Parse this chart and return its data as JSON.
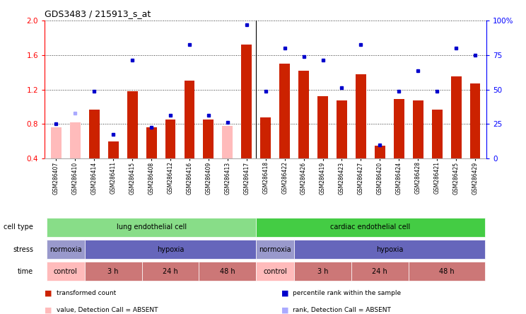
{
  "title": "GDS3483 / 215913_s_at",
  "samples": [
    "GSM286407",
    "GSM286410",
    "GSM286414",
    "GSM286411",
    "GSM286415",
    "GSM286408",
    "GSM286412",
    "GSM286416",
    "GSM286409",
    "GSM286413",
    "GSM286417",
    "GSM286418",
    "GSM286422",
    "GSM286426",
    "GSM286419",
    "GSM286423",
    "GSM286427",
    "GSM286420",
    "GSM286424",
    "GSM286428",
    "GSM286421",
    "GSM286425",
    "GSM286429"
  ],
  "red_values": [
    0.76,
    0.82,
    0.97,
    0.6,
    1.18,
    0.76,
    0.85,
    1.3,
    0.85,
    0.78,
    1.72,
    0.88,
    1.5,
    1.42,
    1.12,
    1.07,
    1.38,
    0.55,
    1.09,
    1.07,
    0.97,
    1.35,
    1.27
  ],
  "blue_values": [
    0.8,
    0.93,
    1.18,
    0.68,
    1.54,
    0.76,
    0.9,
    1.72,
    0.9,
    0.82,
    1.95,
    1.18,
    1.68,
    1.58,
    1.54,
    1.22,
    1.72,
    0.56,
    1.18,
    1.42,
    1.18,
    1.68,
    1.6
  ],
  "absent_bar": [
    true,
    true,
    false,
    false,
    false,
    false,
    false,
    false,
    false,
    true,
    false,
    false,
    false,
    false,
    false,
    false,
    false,
    false,
    false,
    false,
    false,
    false,
    false
  ],
  "absent_rank": [
    false,
    true,
    false,
    false,
    false,
    false,
    false,
    false,
    false,
    false,
    false,
    false,
    false,
    false,
    false,
    false,
    false,
    false,
    false,
    false,
    false,
    false,
    false
  ],
  "bar_color_present": "#cc2200",
  "bar_color_absent": "#ffbbbb",
  "rank_color_present": "#0000cc",
  "rank_color_absent": "#aaaaff",
  "ylim_left": [
    0.4,
    2.0
  ],
  "ylim_right": [
    0,
    100
  ],
  "yticks_left": [
    0.4,
    0.8,
    1.2,
    1.6,
    2.0
  ],
  "yticks_right": [
    0,
    25,
    50,
    75,
    100
  ],
  "ytick_labels_right": [
    "0",
    "25",
    "50",
    "75",
    "100%"
  ],
  "cell_type_groups": [
    {
      "label": "lung endothelial cell",
      "start": 0,
      "end": 10,
      "color": "#88dd88"
    },
    {
      "label": "cardiac endothelial cell",
      "start": 11,
      "end": 22,
      "color": "#44cc44"
    }
  ],
  "stress_groups": [
    {
      "label": "normoxia",
      "start": 0,
      "end": 1,
      "color": "#9999cc"
    },
    {
      "label": "hypoxia",
      "start": 2,
      "end": 10,
      "color": "#6666bb"
    },
    {
      "label": "normoxia",
      "start": 11,
      "end": 12,
      "color": "#9999cc"
    },
    {
      "label": "hypoxia",
      "start": 13,
      "end": 22,
      "color": "#6666bb"
    }
  ],
  "time_groups": [
    {
      "label": "control",
      "start": 0,
      "end": 1,
      "color": "#ffbbbb"
    },
    {
      "label": "3 h",
      "start": 2,
      "end": 4,
      "color": "#cc7777"
    },
    {
      "label": "24 h",
      "start": 5,
      "end": 7,
      "color": "#cc7777"
    },
    {
      "label": "48 h",
      "start": 8,
      "end": 10,
      "color": "#cc7777"
    },
    {
      "label": "control",
      "start": 11,
      "end": 12,
      "color": "#ffbbbb"
    },
    {
      "label": "3 h",
      "start": 13,
      "end": 15,
      "color": "#cc7777"
    },
    {
      "label": "24 h",
      "start": 16,
      "end": 18,
      "color": "#cc7777"
    },
    {
      "label": "48 h",
      "start": 19,
      "end": 22,
      "color": "#cc7777"
    }
  ],
  "legend_items": [
    {
      "label": "transformed count",
      "color": "#cc2200"
    },
    {
      "label": "percentile rank within the sample",
      "color": "#0000cc"
    },
    {
      "label": "value, Detection Call = ABSENT",
      "color": "#ffbbbb"
    },
    {
      "label": "rank, Detection Call = ABSENT",
      "color": "#aaaaff"
    }
  ],
  "bg_color": "#ffffff",
  "grid_color": "#333333"
}
